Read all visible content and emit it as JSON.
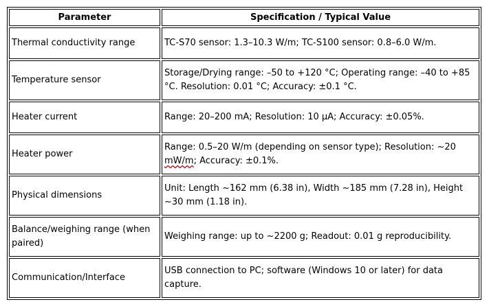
{
  "table": {
    "headers": [
      "Parameter",
      "Specification / Typical Value"
    ],
    "rows": [
      {
        "parameter": "Thermal conductivity range",
        "value": "TC-S70 sensor: 1.3–10.3 W/m; TC-S100 sensor: 0.8–6.0 W/m."
      },
      {
        "parameter": "Temperature sensor",
        "value": "Storage/Drying range: –50 to +120 °C; Operating range: –40 to +85 °C. Resolution: 0.01 °C; Accuracy: ±0.1 °C."
      },
      {
        "parameter": "Heater current",
        "value": "Range: 20–200 mA; Resolution: 10 µA; Accuracy: ±0.05%."
      },
      {
        "parameter": "Heater power",
        "value_part1": "Range: 0.5–20 W/m (depending on sensor type); Resolution: ~20 ",
        "value_flagged": "mW/m",
        "value_part2": "; Accuracy: ±0.1%."
      },
      {
        "parameter": "Physical dimensions",
        "value": "Unit: Length ~162 mm (6.38 in), Width ~185 mm (7.28 in), Height ~30 mm (1.18 in)."
      },
      {
        "parameter": "Balance/weighing range (when paired)",
        "value": "Weighing range: up to ~2200 g; Readout: 0.01 g reproducibility."
      },
      {
        "parameter": "Communication/Interface",
        "value": "USB connection to PC; software (Windows 10 or later) for data capture."
      }
    ]
  }
}
